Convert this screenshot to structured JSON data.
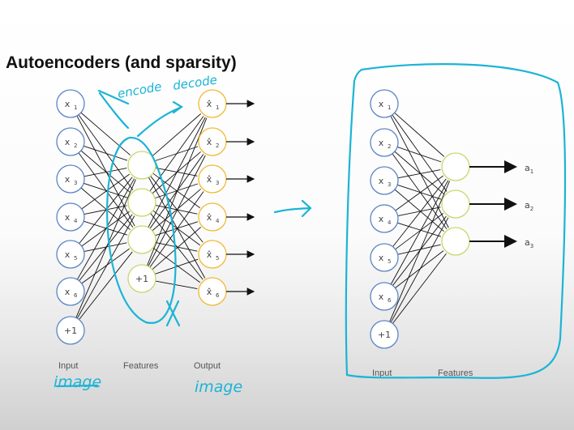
{
  "title": "Autoencoders (and sparsity)",
  "left_net": {
    "inputs": [
      {
        "base": "x",
        "sub": "1"
      },
      {
        "base": "x",
        "sub": "2"
      },
      {
        "base": "x",
        "sub": "3"
      },
      {
        "base": "x",
        "sub": "4"
      },
      {
        "base": "x",
        "sub": "5"
      },
      {
        "base": "x",
        "sub": "6"
      },
      {
        "base": "+1",
        "sub": ""
      }
    ],
    "hidden_bias": "+1",
    "outputs": [
      {
        "base": "x̂",
        "sub": "1"
      },
      {
        "base": "x̂",
        "sub": "2"
      },
      {
        "base": "x̂",
        "sub": "3"
      },
      {
        "base": "x̂",
        "sub": "4"
      },
      {
        "base": "x̂",
        "sub": "5"
      },
      {
        "base": "x̂",
        "sub": "6"
      }
    ],
    "captions": {
      "input": "Input",
      "features": "Features",
      "output": "Output"
    }
  },
  "right_net": {
    "inputs": [
      {
        "base": "x",
        "sub": "1"
      },
      {
        "base": "x",
        "sub": "2"
      },
      {
        "base": "x",
        "sub": "3"
      },
      {
        "base": "x",
        "sub": "4"
      },
      {
        "base": "x",
        "sub": "5"
      },
      {
        "base": "x",
        "sub": "6"
      },
      {
        "base": "+1",
        "sub": ""
      }
    ],
    "activations": [
      {
        "base": "a",
        "sub": "1"
      },
      {
        "base": "a",
        "sub": "2"
      },
      {
        "base": "a",
        "sub": "3"
      }
    ],
    "captions": {
      "input": "Input",
      "features": "Features"
    }
  },
  "annotations": {
    "encode": "encode",
    "decode": "decode",
    "image_left": "image",
    "image_right": "image"
  },
  "colors": {
    "input_node": "#5b84c4",
    "hidden_node": "#c6d86a",
    "output_node": "#f2b833",
    "ink": "#1bb4d6"
  }
}
